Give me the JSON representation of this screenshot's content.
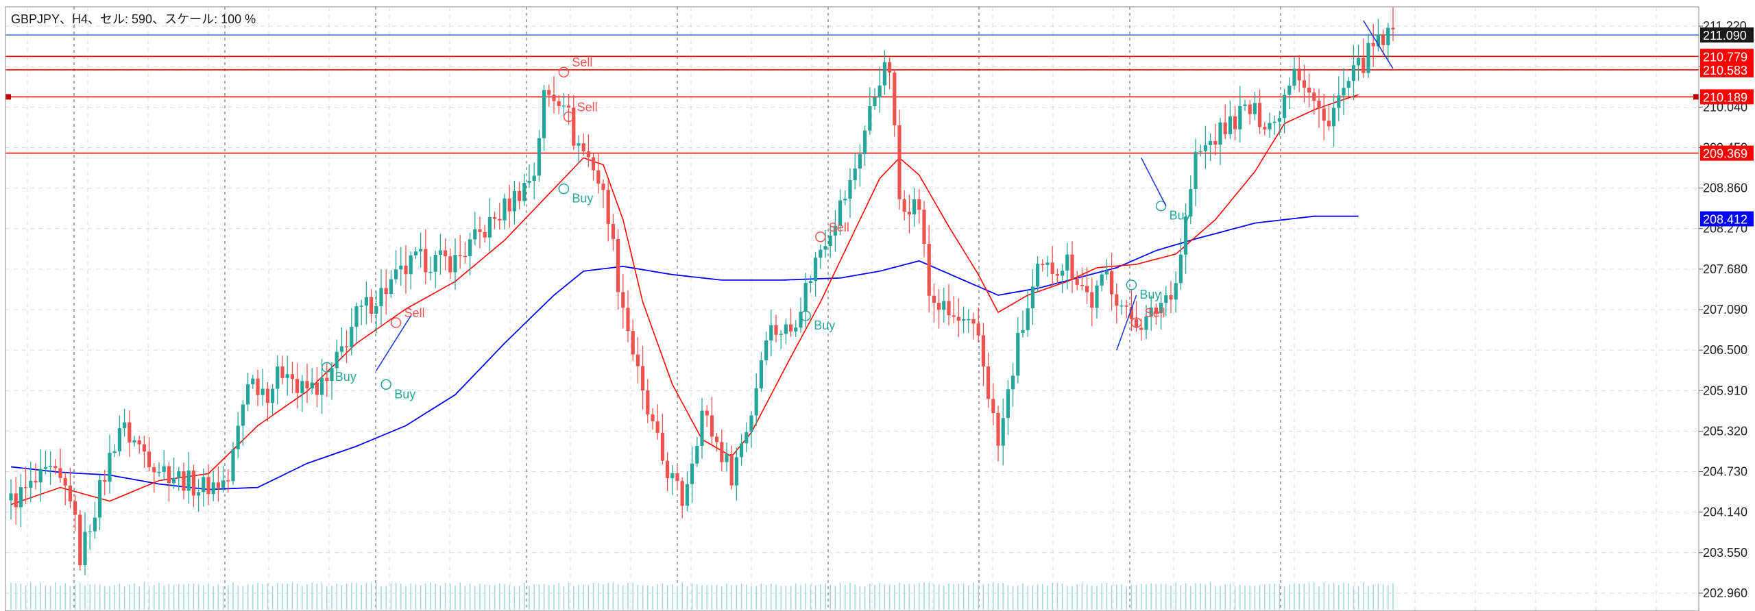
{
  "header": {
    "text": "GBPJPY、H4、セル: 590、スケール: 100 %"
  },
  "colors": {
    "up": "#26a69a",
    "down": "#ef5350",
    "ma_fast": "#ff0000",
    "ma_slow": "#0000ff",
    "hline": "#ff0000",
    "bid_line": "#4a78c8",
    "grid": "#d9d9d9",
    "vsep": "#555555",
    "buy_text": "#26a69a",
    "sell_text": "#ef5350"
  },
  "chart_data": {
    "type": "candlestick",
    "symbol": "GBPJPY",
    "timeframe": "H4",
    "ylim": [
      202.7,
      211.5
    ],
    "y_ticks": [
      202.96,
      203.55,
      204.14,
      204.73,
      205.32,
      205.91,
      206.5,
      207.09,
      207.68,
      208.27,
      208.86,
      209.45,
      210.04,
      210.63,
      211.22
    ],
    "y_tick_labels": [
      "202.960",
      "203.550",
      "204.140",
      "204.730",
      "205.320",
      "205.910",
      "206.500",
      "207.090",
      "207.680",
      "208.270",
      "208.860",
      "209.450",
      "210.040",
      "210.630",
      "211.220"
    ],
    "price_labels": [
      {
        "label": "211.090",
        "value": 211.09,
        "bg": "#1a1a1a"
      },
      {
        "label": "210.779",
        "value": 210.779,
        "bg": "#ff0000"
      },
      {
        "label": "210.583",
        "value": 210.583,
        "bg": "#ff0000"
      },
      {
        "label": "210.189",
        "value": 210.189,
        "bg": "#ff0000"
      },
      {
        "label": "209.369",
        "value": 209.369,
        "bg": "#ff0000"
      },
      {
        "label": "208.412",
        "value": 208.412,
        "bg": "#0000ff"
      }
    ],
    "horizontal_lines": [
      {
        "value": 211.09,
        "color": "#4a78c8"
      },
      {
        "value": 210.779,
        "color": "#ff0000"
      },
      {
        "value": 210.583,
        "color": "#ff0000"
      },
      {
        "value": 210.189,
        "color": "#ff0000"
      },
      {
        "value": 209.369,
        "color": "#ff0000"
      }
    ],
    "key_closes": [
      [
        0,
        204.3
      ],
      [
        8,
        204.7
      ],
      [
        12,
        204.4
      ],
      [
        14,
        203.5
      ],
      [
        22,
        205.4
      ],
      [
        30,
        204.8
      ],
      [
        38,
        204.5
      ],
      [
        44,
        204.6
      ],
      [
        48,
        206.1
      ],
      [
        52,
        205.9
      ],
      [
        56,
        206.3
      ],
      [
        58,
        205.9
      ],
      [
        64,
        206.0
      ],
      [
        70,
        207.0
      ],
      [
        76,
        207.4
      ],
      [
        82,
        207.8
      ],
      [
        90,
        207.8
      ],
      [
        98,
        208.4
      ],
      [
        104,
        208.9
      ],
      [
        106,
        209.1
      ],
      [
        108,
        210.2
      ],
      [
        112,
        210.2
      ],
      [
        114,
        209.6
      ],
      [
        118,
        209.2
      ],
      [
        121,
        208.5
      ],
      [
        123,
        207.5
      ],
      [
        128,
        205.8
      ],
      [
        132,
        204.9
      ],
      [
        136,
        204.3
      ],
      [
        140,
        205.6
      ],
      [
        144,
        205.0
      ],
      [
        146,
        204.7
      ],
      [
        150,
        205.6
      ],
      [
        153,
        206.8
      ],
      [
        158,
        206.8
      ],
      [
        164,
        208.0
      ],
      [
        170,
        208.9
      ],
      [
        176,
        210.5
      ],
      [
        178,
        210.6
      ],
      [
        180,
        208.7
      ],
      [
        184,
        208.6
      ],
      [
        186,
        207.3
      ],
      [
        190,
        207.0
      ],
      [
        196,
        206.7
      ],
      [
        200,
        205.1
      ],
      [
        204,
        206.6
      ],
      [
        208,
        207.6
      ],
      [
        214,
        207.8
      ],
      [
        219,
        207.2
      ],
      [
        222,
        207.6
      ],
      [
        226,
        207.0
      ],
      [
        230,
        206.9
      ],
      [
        236,
        207.5
      ],
      [
        240,
        209.3
      ],
      [
        244,
        209.6
      ],
      [
        250,
        210.0
      ],
      [
        256,
        209.8
      ],
      [
        260,
        210.7
      ],
      [
        266,
        209.8
      ],
      [
        272,
        210.5
      ],
      [
        276,
        210.9
      ],
      [
        280,
        211.1
      ]
    ],
    "ma_fast": [
      [
        0,
        204.25
      ],
      [
        10,
        204.5
      ],
      [
        20,
        204.3
      ],
      [
        30,
        204.6
      ],
      [
        40,
        204.7
      ],
      [
        50,
        205.4
      ],
      [
        60,
        205.9
      ],
      [
        70,
        206.6
      ],
      [
        80,
        207.1
      ],
      [
        90,
        207.5
      ],
      [
        100,
        208.1
      ],
      [
        108,
        208.7
      ],
      [
        116,
        209.3
      ],
      [
        120,
        209.2
      ],
      [
        124,
        208.4
      ],
      [
        128,
        207.2
      ],
      [
        134,
        206.0
      ],
      [
        140,
        205.2
      ],
      [
        146,
        204.95
      ],
      [
        150,
        205.3
      ],
      [
        158,
        206.4
      ],
      [
        164,
        207.2
      ],
      [
        170,
        208.1
      ],
      [
        176,
        209.0
      ],
      [
        180,
        209.3
      ],
      [
        184,
        209.05
      ],
      [
        190,
        208.3
      ],
      [
        196,
        207.6
      ],
      [
        200,
        207.05
      ],
      [
        206,
        207.3
      ],
      [
        214,
        207.5
      ],
      [
        220,
        207.7
      ],
      [
        228,
        207.75
      ],
      [
        236,
        207.9
      ],
      [
        244,
        208.4
      ],
      [
        252,
        209.1
      ],
      [
        258,
        209.8
      ],
      [
        264,
        210.0
      ],
      [
        270,
        210.15
      ],
      [
        273,
        210.22
      ]
    ],
    "ma_slow": [
      [
        0,
        204.8
      ],
      [
        10,
        204.72
      ],
      [
        20,
        204.68
      ],
      [
        30,
        204.55
      ],
      [
        40,
        204.47
      ],
      [
        50,
        204.5
      ],
      [
        60,
        204.85
      ],
      [
        70,
        205.1
      ],
      [
        80,
        205.4
      ],
      [
        90,
        205.85
      ],
      [
        100,
        206.6
      ],
      [
        110,
        207.3
      ],
      [
        116,
        207.65
      ],
      [
        124,
        207.72
      ],
      [
        134,
        207.6
      ],
      [
        144,
        207.52
      ],
      [
        156,
        207.52
      ],
      [
        168,
        207.55
      ],
      [
        176,
        207.65
      ],
      [
        184,
        207.8
      ],
      [
        192,
        207.55
      ],
      [
        200,
        207.3
      ],
      [
        208,
        207.4
      ],
      [
        216,
        207.55
      ],
      [
        224,
        207.7
      ],
      [
        232,
        207.95
      ],
      [
        240,
        208.12
      ],
      [
        252,
        208.35
      ],
      [
        264,
        208.45
      ],
      [
        273,
        208.45
      ]
    ],
    "signals": [
      {
        "label": "Buy",
        "type": "buy",
        "index": 64,
        "value": 206.25
      },
      {
        "label": "Buy",
        "type": "buy",
        "index": 76,
        "value": 206.0
      },
      {
        "label": "Sell",
        "type": "sell",
        "index": 78,
        "value": 206.9
      },
      {
        "label": "Sell",
        "type": "sell",
        "index": 112,
        "value": 210.55
      },
      {
        "label": "Sell",
        "type": "sell",
        "index": 113,
        "value": 209.9
      },
      {
        "label": "Buy",
        "type": "buy",
        "index": 112,
        "value": 208.85
      },
      {
        "label": "Buy",
        "type": "buy",
        "index": 161,
        "value": 207.0
      },
      {
        "label": "Sell",
        "type": "sell",
        "index": 164,
        "value": 208.15
      },
      {
        "label": "Buy",
        "type": "buy",
        "index": 227,
        "value": 207.45
      },
      {
        "label": "Sell",
        "type": "sell",
        "index": 228,
        "value": 206.9
      },
      {
        "label": "Buy",
        "type": "buy",
        "index": 233,
        "value": 208.6
      }
    ]
  }
}
